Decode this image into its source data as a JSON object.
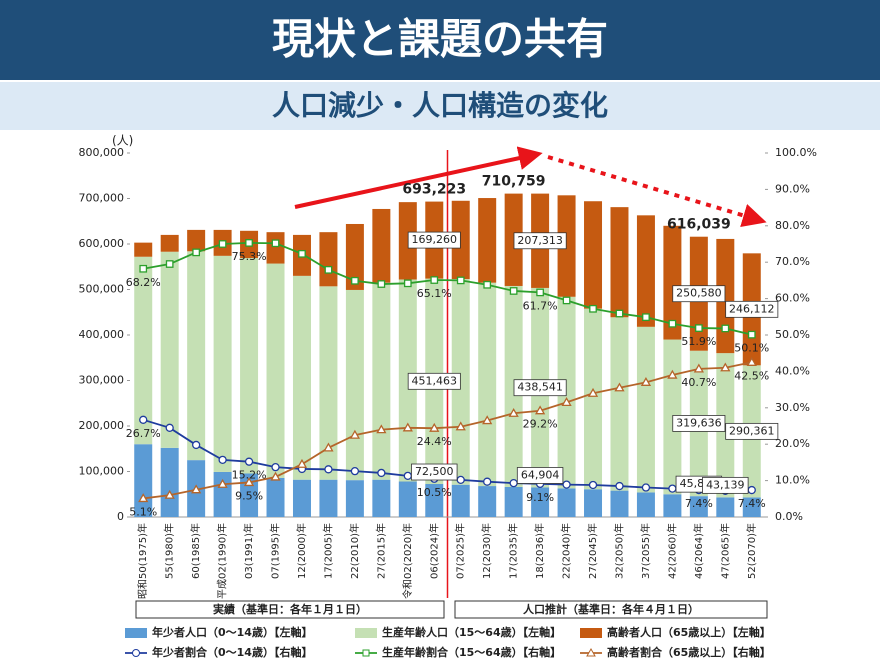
{
  "header": {
    "title": "現状と課題の共有",
    "subtitle": "人口減少・人口構造の変化"
  },
  "chart_data": {
    "type": "bar-line",
    "y_unit": "(人)",
    "categories": [
      "昭和50(1975)年",
      "55(1980)年",
      "60(1985)年",
      "平成02(1990)年",
      "03(1991)年",
      "07(1995)年",
      "12(2000)年",
      "17(2005)年",
      "22(2010)年",
      "27(2015)年",
      "令和02(2020)年",
      "06(2024)年",
      "07(2025)年",
      "12(2030)年",
      "17(2035)年",
      "18(2036)年",
      "22(2040)年",
      "27(2045)年",
      "32(2050)年",
      "37(2055)年",
      "42(2060)年",
      "46(2064)年",
      "47(2065)年",
      "52(2070)年"
    ],
    "ylim": [
      0,
      800000
    ],
    "yticks": [
      0,
      {
        "value": 100000,
        "label": "100,000"
      },
      {
        "value": 200000,
        "label": "200,000"
      },
      {
        "value": 300000,
        "label": "300,000"
      },
      {
        "value": 400000,
        "label": "400,000"
      },
      {
        "value": 500000,
        "label": "500,000"
      },
      {
        "value": 600000,
        "label": "600,000"
      },
      {
        "value": 700000,
        "label": "700,000"
      },
      {
        "value": 800000,
        "label": "800,000"
      }
    ],
    "y2lim": [
      0,
      100
    ],
    "y2ticks": [
      {
        "value": 0,
        "label": "0.0%"
      },
      {
        "value": 10,
        "label": "10.0%"
      },
      {
        "value": 20,
        "label": "20.0%"
      },
      {
        "value": 30,
        "label": "30.0%"
      },
      {
        "value": 40,
        "label": "40.0%"
      },
      {
        "value": 50,
        "label": "50.0%"
      },
      {
        "value": 60,
        "label": "60.0%"
      },
      {
        "value": 70,
        "label": "70.0%"
      },
      {
        "value": 80,
        "label": "80.0%"
      },
      {
        "value": 90,
        "label": "90.0%"
      },
      {
        "value": 100,
        "label": "100.0%"
      }
    ],
    "series": [
      {
        "name": "年少者人口（0～14歳）【左軸】",
        "type": "bar",
        "color": "#5b9bd5",
        "values": [
          160000,
          152000,
          125000,
          99000,
          95600,
          86000,
          82000,
          82000,
          81000,
          82000,
          78000,
          72500,
          71000,
          68000,
          66000,
          64904,
          63000,
          61000,
          58000,
          54000,
          50000,
          45823,
          43139,
          43000
        ],
        "value_labels": [
          null,
          null,
          null,
          null,
          null,
          null,
          null,
          null,
          null,
          null,
          null,
          "72,500",
          null,
          null,
          null,
          "64,904",
          null,
          null,
          null,
          null,
          null,
          "45,823",
          "43,139",
          null
        ]
      },
      {
        "name": "生産年齢人口（15～64歳）【左軸】",
        "type": "bar",
        "color": "#c5e0b4",
        "values": [
          412000,
          431000,
          459000,
          475000,
          473600,
          471000,
          448000,
          425000,
          418000,
          433000,
          444000,
          451463,
          452000,
          447000,
          441759,
          438541,
          421000,
          397000,
          381000,
          364000,
          340000,
          319636,
          317000,
          290361
        ],
        "value_labels": [
          null,
          null,
          null,
          null,
          null,
          null,
          null,
          null,
          null,
          null,
          null,
          "451,463",
          null,
          null,
          null,
          "438,541",
          null,
          null,
          null,
          null,
          null,
          "319,636",
          null,
          "290,361"
        ]
      },
      {
        "name": "高齢者人口（65歳以上）【左軸】",
        "type": "bar",
        "color": "#c55a11",
        "values": [
          31000,
          37000,
          47000,
          57000,
          59800,
          69000,
          90000,
          119000,
          145000,
          162000,
          170000,
          169260,
          172000,
          186000,
          203000,
          207313,
          223000,
          236000,
          242000,
          245000,
          250000,
          250580,
          251000,
          246112
        ],
        "value_labels": [
          null,
          null,
          null,
          null,
          null,
          null,
          null,
          null,
          null,
          null,
          null,
          "169,260",
          null,
          null,
          null,
          "207,313",
          null,
          null,
          null,
          null,
          null,
          "250,580",
          null,
          "246,112"
        ]
      },
      {
        "name": "年少者割合（0～14歳）【右軸】",
        "type": "line",
        "axis": "y2",
        "color": "#1f3c9e",
        "marker": "circle",
        "values": [
          26.7,
          24.5,
          19.8,
          15.7,
          15.2,
          13.7,
          13.2,
          13.1,
          12.6,
          12.1,
          11.3,
          10.5,
          10.2,
          9.7,
          9.3,
          9.1,
          8.9,
          8.8,
          8.5,
          8.1,
          7.8,
          7.4,
          7.2,
          7.4
        ],
        "value_labels": [
          "26.7%",
          null,
          null,
          null,
          "15.2%",
          null,
          null,
          null,
          null,
          null,
          null,
          "10.5%",
          null,
          null,
          null,
          "9.1%",
          null,
          null,
          null,
          null,
          null,
          "7.4%",
          null,
          "7.4%"
        ]
      },
      {
        "name": "生産年齢割合（15～64歳）【右軸】",
        "type": "line",
        "axis": "y2",
        "color": "#2ca02c",
        "marker": "square",
        "values": [
          68.2,
          69.5,
          72.7,
          75.0,
          75.3,
          75.2,
          72.3,
          67.9,
          64.9,
          64.0,
          64.2,
          65.1,
          65.0,
          63.8,
          62.1,
          61.7,
          59.5,
          57.2,
          55.9,
          54.9,
          53.1,
          51.9,
          51.8,
          50.1
        ],
        "value_labels": [
          "68.2%",
          null,
          null,
          null,
          "75.3%",
          null,
          null,
          null,
          null,
          null,
          null,
          "65.1%",
          null,
          null,
          null,
          "61.7%",
          null,
          null,
          null,
          null,
          null,
          "51.9%",
          null,
          "50.1%"
        ]
      },
      {
        "name": "高齢者割合（65歳以上）【右軸】",
        "type": "line",
        "axis": "y2",
        "color": "#b5652a",
        "marker": "triangle",
        "values": [
          5.1,
          6.0,
          7.5,
          9.0,
          9.5,
          11.0,
          14.5,
          19.0,
          22.5,
          24.0,
          24.5,
          24.4,
          24.8,
          26.5,
          28.5,
          29.2,
          31.5,
          34.0,
          35.5,
          37.0,
          39.0,
          40.7,
          41.0,
          42.5
        ],
        "value_labels": [
          "5.1%",
          null,
          null,
          null,
          "9.5%",
          null,
          null,
          null,
          null,
          null,
          null,
          "24.4%",
          null,
          null,
          null,
          "29.2%",
          null,
          null,
          null,
          null,
          null,
          "40.7%",
          null,
          "42.5%"
        ]
      }
    ],
    "total_value_labels": [
      null,
      null,
      null,
      null,
      null,
      null,
      null,
      null,
      null,
      null,
      null,
      "693,223",
      null,
      null,
      "710,759",
      null,
      null,
      null,
      null,
      null,
      null,
      "616,039",
      null,
      null
    ],
    "periods": [
      "実績（基準日：各年１月１日）",
      "人口推計（基準日：各年４月１日）"
    ]
  }
}
